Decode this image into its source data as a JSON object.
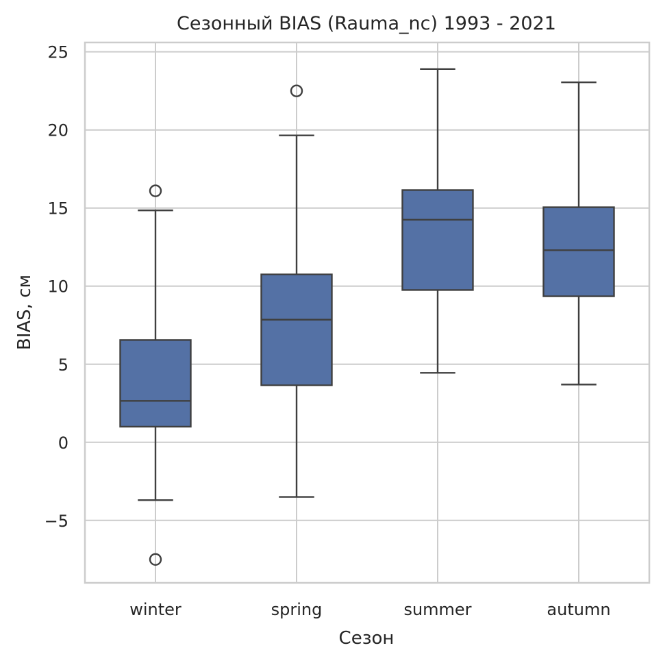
{
  "chart_data": {
    "type": "box",
    "title": "Сезонный BIAS (Rauma_nc) 1993 - 2021",
    "xlabel": "Сезон",
    "ylabel": "BIAS, см",
    "categories": [
      "winter",
      "spring",
      "summer",
      "autumn"
    ],
    "ylim": [
      -9.0,
      25.6
    ],
    "yticks": [
      25,
      20,
      15,
      10,
      5,
      0,
      -5
    ],
    "ytick_labels": [
      "25",
      "20",
      "15",
      "10",
      "5",
      "0",
      "−5"
    ],
    "grid": true,
    "box_color": "#5471a5",
    "series": [
      {
        "category": "winter",
        "whisker_low": -3.7,
        "q1": 1.0,
        "median": 2.65,
        "q3": 6.55,
        "whisker_high": 14.85,
        "outliers": [
          16.1,
          -7.5
        ]
      },
      {
        "category": "spring",
        "whisker_low": -3.5,
        "q1": 3.65,
        "median": 7.85,
        "q3": 10.75,
        "whisker_high": 19.65,
        "outliers": [
          22.5
        ]
      },
      {
        "category": "summer",
        "whisker_low": 4.45,
        "q1": 9.75,
        "median": 14.25,
        "q3": 16.15,
        "whisker_high": 23.9,
        "outliers": []
      },
      {
        "category": "autumn",
        "whisker_low": 3.7,
        "q1": 9.35,
        "median": 12.3,
        "q3": 15.05,
        "whisker_high": 23.05,
        "outliers": []
      }
    ]
  }
}
